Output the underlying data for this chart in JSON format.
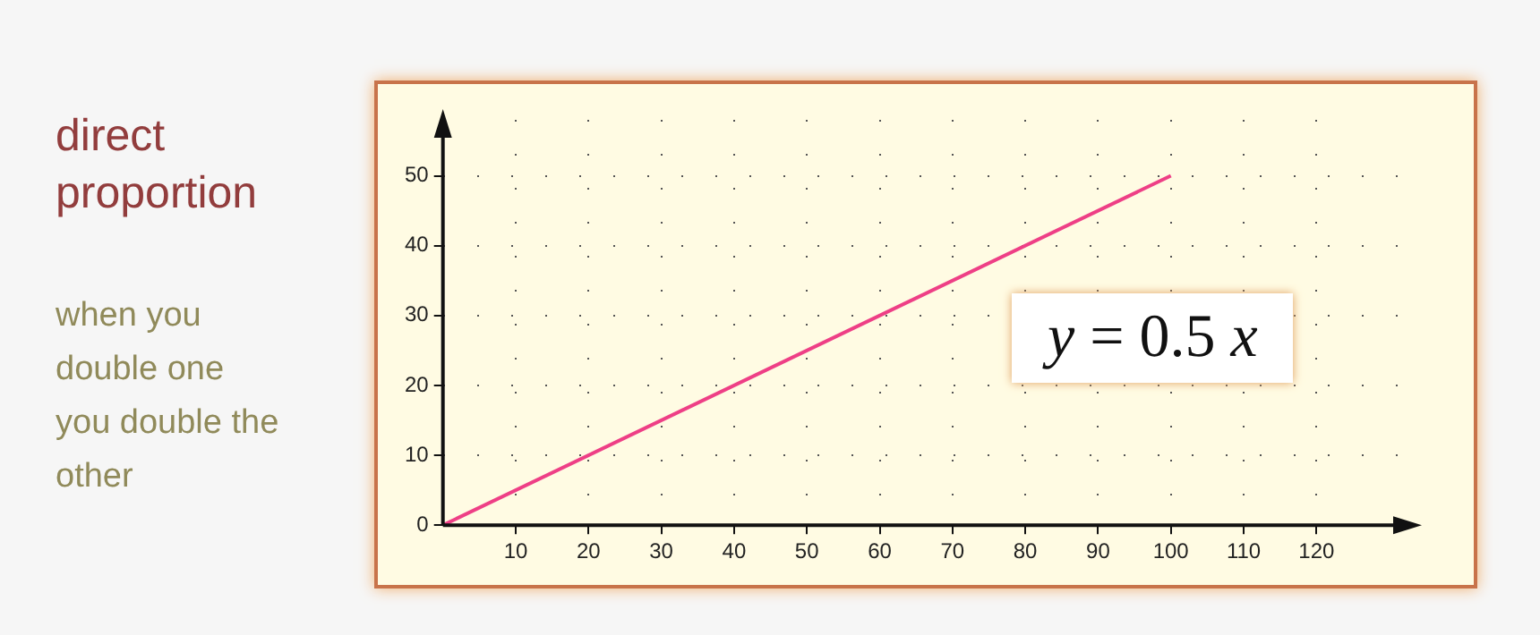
{
  "chart_data": {
    "type": "line",
    "title": "direct proportion",
    "subtitle": "when you double one you double the other",
    "x": [
      0,
      100
    ],
    "series": [
      {
        "color": "#ee3f86",
        "values": [
          0,
          50
        ]
      }
    ],
    "xlim": [
      0,
      133
    ],
    "xticks": [
      10,
      20,
      30,
      40,
      50,
      60,
      70,
      80,
      90,
      100,
      110,
      120
    ],
    "ylim": [
      0,
      58
    ],
    "yticks": [
      {
        "value": 0,
        "label": "0"
      },
      10,
      20,
      30,
      40,
      50
    ],
    "grid": true,
    "marker": "none",
    "line_style": "solid",
    "legend": false,
    "annotations": [
      "y = 0.5 x"
    ]
  }
}
